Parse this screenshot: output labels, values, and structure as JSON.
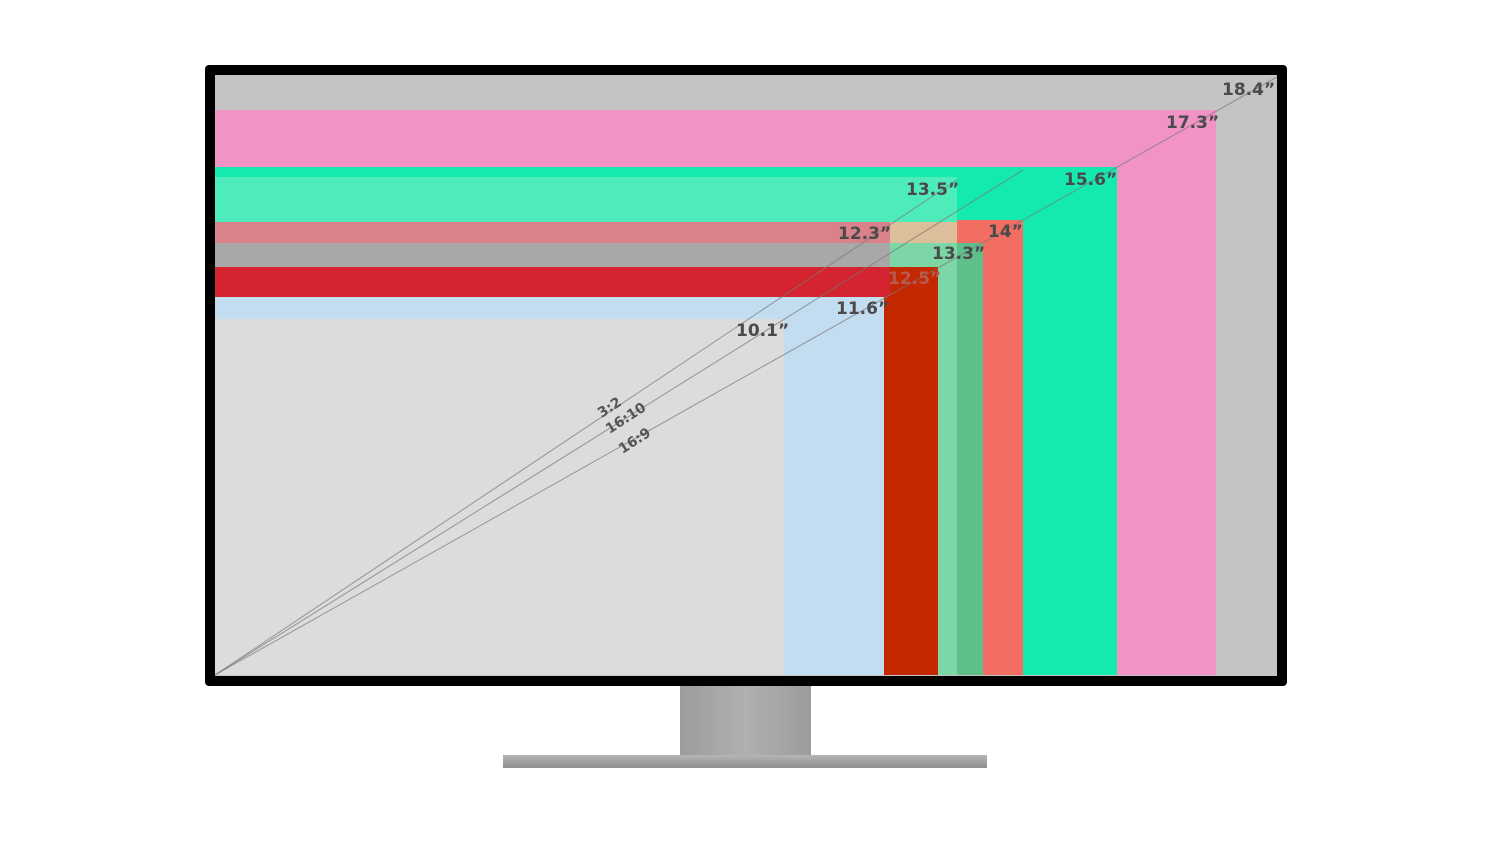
{
  "sizes": [
    {
      "label": "18.4”",
      "color": "#c4c4c4"
    },
    {
      "label": "17.3”",
      "color": "#f293c6"
    },
    {
      "label": "15.6”",
      "color": "#14e9b0"
    },
    {
      "label": "14”",
      "color": "#f26e62"
    },
    {
      "label": "13.5”",
      "color": "#4eecbb"
    },
    {
      "label": "13.3”",
      "color": "#5fbf8b"
    },
    {
      "label": "12.3”",
      "color": "#d9828c"
    },
    {
      "label": "12.5”",
      "color": "#d4242f"
    },
    {
      "label": "11.6”",
      "color": "#c3ddf0"
    },
    {
      "label": "10.1”",
      "color": "#dcdcdc"
    }
  ],
  "ratios": [
    "3:2",
    "16:10",
    "16:9"
  ]
}
